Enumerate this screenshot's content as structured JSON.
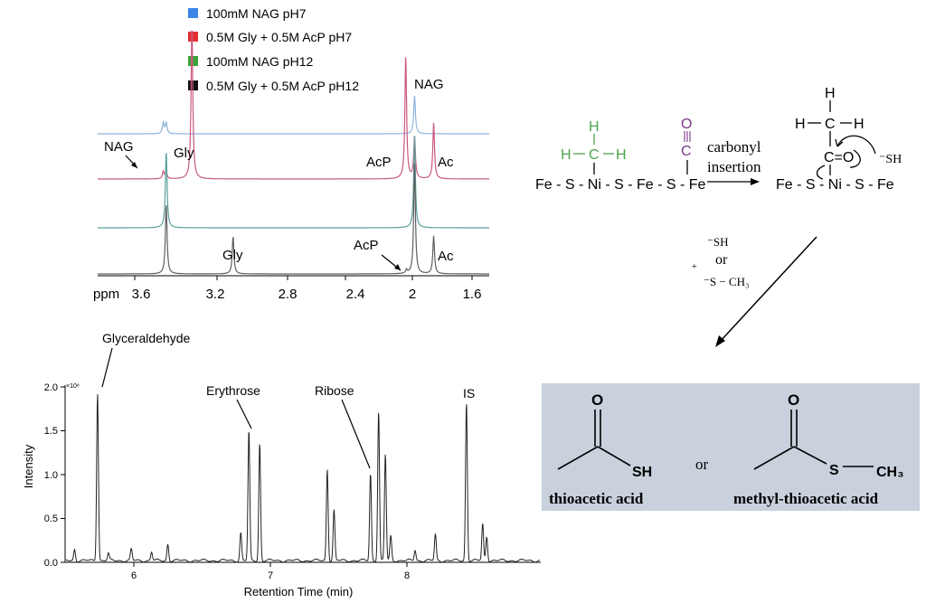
{
  "colors": {
    "blue": "#8db4dc",
    "red": "#c9597f",
    "green": "#5aa09a",
    "black": "#606060",
    "green_label": "#4ea24e",
    "purple": "#7a3a88",
    "box_bg": "#c8d1dc"
  },
  "nmr": {
    "legend": [
      {
        "label": "100mM NAG pH7",
        "swatch": "#3b83e6"
      },
      {
        "label": "0.5M Gly + 0.5M AcP pH7",
        "swatch": "#e23030"
      },
      {
        "label": "100mM NAG pH12",
        "swatch": "#3aa33a"
      },
      {
        "label": "0.5M Gly + 0.5M AcP pH12",
        "swatch": "#111111"
      }
    ],
    "axis_unit": "ppm",
    "tick_labels": [
      "3.6",
      "3.2",
      "2.8",
      "2.4",
      "2",
      "1.6"
    ],
    "annotations": {
      "nag_top": "NAG",
      "nag_left": "NAG",
      "gly_red": "Gly",
      "acp_red": "AcP",
      "ac_red": "Ac",
      "gly_black": "Gly",
      "acp_black": "AcP",
      "ac_black": "Ac"
    }
  },
  "chart_data": {
    "type": "line",
    "xlabel": "Retention Time (min)",
    "ylabel": "Intensity",
    "y_multiplier": "×10⁸",
    "xlim": [
      5.48,
      9.0
    ],
    "ylim": [
      0,
      2.0
    ],
    "x_ticks": [
      "6",
      "7",
      "8"
    ],
    "y_ticks": [
      "0.0",
      "0.5",
      "1.0",
      "1.5",
      "2.0"
    ],
    "annotations": [
      "Glyceraldehyde",
      "Erythrose",
      "Ribose",
      "IS"
    ],
    "peaks": [
      {
        "x": 5.55,
        "y": 0.13
      },
      {
        "x": 5.72,
        "y": 1.93
      },
      {
        "x": 5.8,
        "y": 0.08
      },
      {
        "x": 5.97,
        "y": 0.13
      },
      {
        "x": 6.12,
        "y": 0.1
      },
      {
        "x": 6.24,
        "y": 0.19
      },
      {
        "x": 6.78,
        "y": 0.32
      },
      {
        "x": 6.84,
        "y": 1.49
      },
      {
        "x": 6.92,
        "y": 1.35
      },
      {
        "x": 7.42,
        "y": 1.05
      },
      {
        "x": 7.47,
        "y": 0.58
      },
      {
        "x": 7.74,
        "y": 1.0
      },
      {
        "x": 7.8,
        "y": 1.72
      },
      {
        "x": 7.85,
        "y": 1.22
      },
      {
        "x": 7.89,
        "y": 0.28
      },
      {
        "x": 8.07,
        "y": 0.12
      },
      {
        "x": 8.22,
        "y": 0.3
      },
      {
        "x": 8.45,
        "y": 1.82
      },
      {
        "x": 8.57,
        "y": 0.42
      },
      {
        "x": 8.6,
        "y": 0.28
      }
    ]
  },
  "scheme": {
    "left": {
      "h_top": "H",
      "h_left": "H",
      "c": "C",
      "h_right": "H",
      "o": "O",
      "co_c": "C",
      "chain": "Fe - S - Ni - S - Fe - S - Fe"
    },
    "arrow_label_1": "carbonyl",
    "arrow_label_2": "insertion",
    "right": {
      "h_top": "H",
      "h_left": "H",
      "c": "C",
      "h_right": "H",
      "co": "C=O",
      "sh": "⁻SH",
      "chain": "Fe - S - Ni - S - Fe"
    },
    "reagent_sh": "⁻SH",
    "reagent_or": "or",
    "reagent_plus": "+",
    "reagent_sch3": "⁻S − CH₃"
  },
  "products": {
    "left_o": "O",
    "left_sh": "SH",
    "left_name": "thioacetic acid",
    "or": "or",
    "right_o": "O",
    "right_s": "S",
    "right_ch3": "CH₃",
    "right_name": "methyl-thioacetic acid"
  }
}
